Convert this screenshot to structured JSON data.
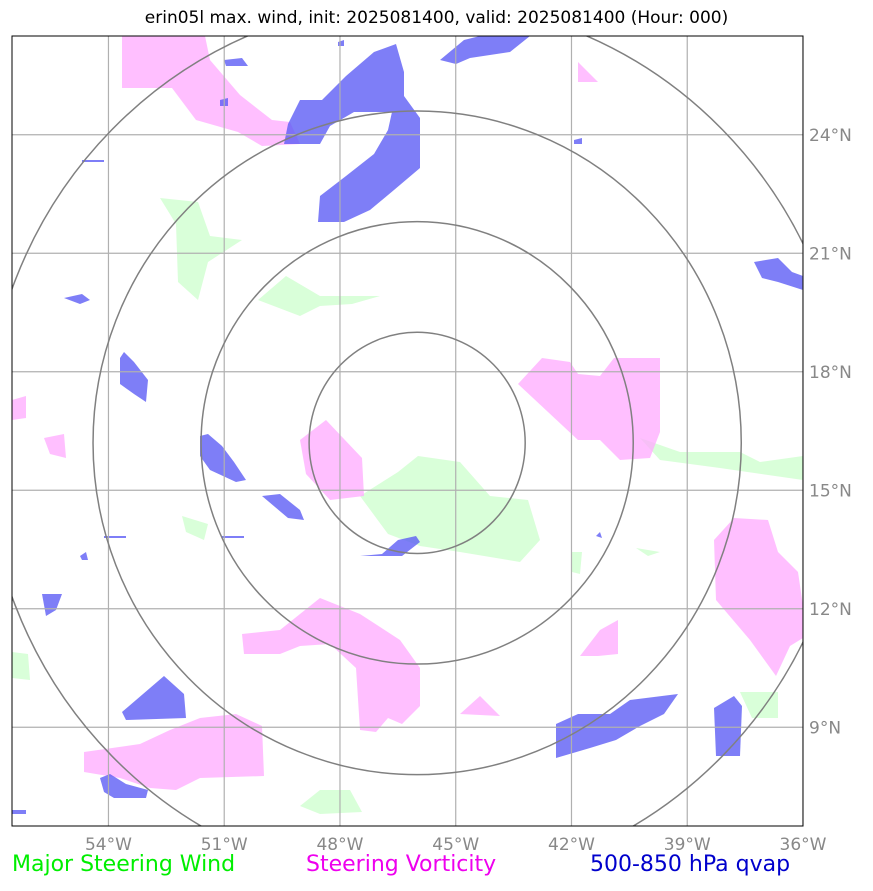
{
  "title": "erin05l max. wind, init: 2025081400, valid: 2025081400 (Hour: 000)",
  "map": {
    "lon_range": [
      -56.5,
      -36.0
    ],
    "lat_range": [
      6.5,
      26.5
    ],
    "center": {
      "lon": -46.0,
      "lat": 16.2
    },
    "lon_ticks": [
      {
        "lon": -54,
        "label": "54°W"
      },
      {
        "lon": -51,
        "label": "51°W"
      },
      {
        "lon": -48,
        "label": "48°W"
      },
      {
        "lon": -45,
        "label": "45°W"
      },
      {
        "lon": -42,
        "label": "42°W"
      },
      {
        "lon": -39,
        "label": "39°W"
      },
      {
        "lon": -36,
        "label": "36°W"
      }
    ],
    "lat_ticks": [
      {
        "lat": 9,
        "label": "9°N"
      },
      {
        "lat": 12,
        "label": "12°N"
      },
      {
        "lat": 15,
        "label": "15°N"
      },
      {
        "lat": 18,
        "label": "18°N"
      },
      {
        "lat": 21,
        "label": "21°N"
      },
      {
        "lat": 24,
        "label": "24°N"
      }
    ],
    "range_rings_deg": [
      2.8,
      5.6,
      8.4,
      11.2
    ],
    "colors": {
      "grid": "#b0b0b0",
      "ring": "#808080",
      "wind": "#ccffcc",
      "vorticity": "#ffaaff",
      "qvap": "#5a5af5",
      "tick": "#888888"
    }
  },
  "legend": {
    "wind": {
      "label": "Major Steering Wind",
      "color": "#00ee00"
    },
    "vorticity": {
      "label": "Steering Vorticity",
      "color": "#ee00ee"
    },
    "qvap": {
      "label": "500-850 hPa qvap",
      "color": "#0000cc"
    }
  }
}
